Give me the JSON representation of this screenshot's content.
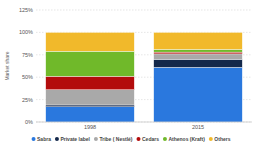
{
  "chart_data": {
    "type": "bar",
    "stacked": true,
    "grid": true,
    "legend": "bottom",
    "y_label": "Market share",
    "categories": [
      "1998",
      "2015"
    ],
    "ylim": [
      0,
      125
    ],
    "yticks": [
      {
        "value": 0,
        "label": "0%"
      },
      {
        "value": 25,
        "label": "25%"
      },
      {
        "value": 50,
        "label": "50%"
      },
      {
        "value": 75,
        "label": "75%"
      },
      {
        "value": 100,
        "label": "100%"
      },
      {
        "value": 125,
        "label": "125%"
      }
    ],
    "series": [
      {
        "name": "Sabra",
        "color": "#2a78de",
        "values": [
          17,
          61
        ]
      },
      {
        "name": "Private label",
        "color": "#14284b",
        "values": [
          2,
          9
        ]
      },
      {
        "name": "Tribe ( Nestlé)",
        "color": "#a9a9a9",
        "values": [
          17,
          6
        ]
      },
      {
        "name": "Cedars",
        "color": "#b30c0c",
        "values": [
          15,
          2
        ]
      },
      {
        "name": "Athenos (Kraft)",
        "color": "#70b92a",
        "values": [
          28,
          3
        ]
      },
      {
        "name": "Others",
        "color": "#f1b92b",
        "values": [
          21,
          19
        ]
      }
    ]
  }
}
